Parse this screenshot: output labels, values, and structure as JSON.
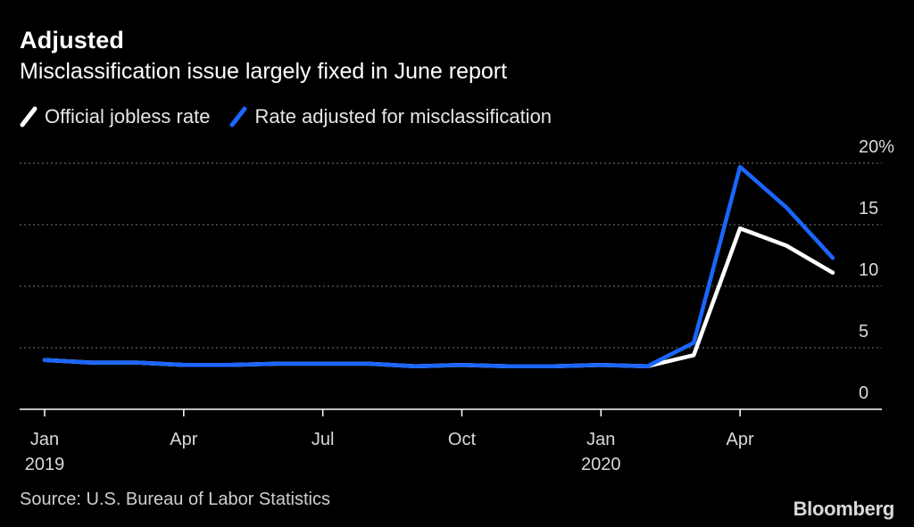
{
  "header": {
    "title": "Adjusted",
    "subtitle": "Misclassification issue largely fixed in June report"
  },
  "legend": [
    {
      "label": "Official jobless rate",
      "color": "#ffffff"
    },
    {
      "label": "Rate adjusted for misclassification",
      "color": "#1a66ff"
    }
  ],
  "footer": {
    "source": "Source: U.S. Bureau of Labor Statistics",
    "brand": "Bloomberg"
  },
  "chart_data": {
    "type": "line",
    "title": "Adjusted",
    "subtitle": "Misclassification issue largely fixed in June report",
    "xlabel": "",
    "ylabel": "",
    "x": [
      "2019-01",
      "2019-02",
      "2019-03",
      "2019-04",
      "2019-05",
      "2019-06",
      "2019-07",
      "2019-08",
      "2019-09",
      "2019-10",
      "2019-11",
      "2019-12",
      "2020-01",
      "2020-02",
      "2020-03",
      "2020-04",
      "2020-05",
      "2020-06"
    ],
    "x_ticks": [
      {
        "x": "2019-01",
        "label": "Jan",
        "sub": "2019"
      },
      {
        "x": "2019-04",
        "label": "Apr",
        "sub": ""
      },
      {
        "x": "2019-07",
        "label": "Jul",
        "sub": ""
      },
      {
        "x": "2019-10",
        "label": "Oct",
        "sub": ""
      },
      {
        "x": "2020-01",
        "label": "Jan",
        "sub": "2020"
      },
      {
        "x": "2020-04",
        "label": "Apr",
        "sub": ""
      }
    ],
    "y_ticks": [
      {
        "value": 0,
        "label": "0"
      },
      {
        "value": 5,
        "label": "5"
      },
      {
        "value": 10,
        "label": "10"
      },
      {
        "value": 15,
        "label": "15"
      },
      {
        "value": 20,
        "label": "20%"
      }
    ],
    "ylim": [
      0,
      20
    ],
    "grid": "horizontal dotted",
    "legend_position": "top-left",
    "series": [
      {
        "name": "Official jobless rate",
        "color": "#ffffff",
        "values": [
          4.0,
          3.8,
          3.8,
          3.6,
          3.6,
          3.7,
          3.7,
          3.7,
          3.5,
          3.6,
          3.5,
          3.5,
          3.6,
          3.5,
          4.4,
          14.7,
          13.3,
          11.1
        ]
      },
      {
        "name": "Rate adjusted for misclassification",
        "color": "#1a66ff",
        "values": [
          4.0,
          3.8,
          3.8,
          3.6,
          3.6,
          3.7,
          3.7,
          3.7,
          3.5,
          3.6,
          3.5,
          3.5,
          3.6,
          3.5,
          5.4,
          19.7,
          16.4,
          12.3
        ]
      }
    ]
  }
}
